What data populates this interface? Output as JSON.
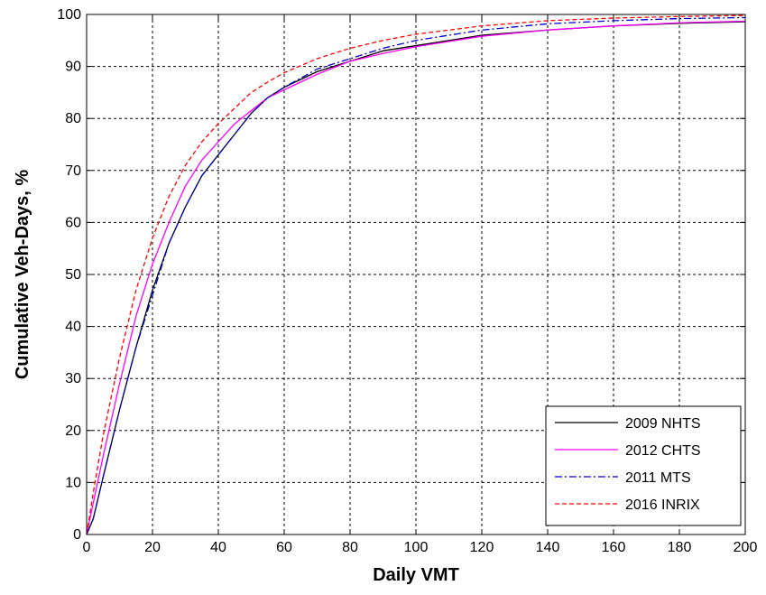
{
  "chart_data": {
    "type": "line",
    "title": "",
    "xlabel": "Daily VMT",
    "ylabel": "Cumulative Veh-Days, %",
    "xlim": [
      0,
      200
    ],
    "ylim": [
      0,
      100
    ],
    "x_ticks": [
      0,
      20,
      40,
      60,
      80,
      100,
      120,
      140,
      160,
      180,
      200
    ],
    "y_ticks": [
      0,
      10,
      20,
      30,
      40,
      50,
      60,
      70,
      80,
      90,
      100
    ],
    "grid": true,
    "legend_position": "bottom-right",
    "series": [
      {
        "name": "2009 NHTS",
        "color": "#000000",
        "dash": "solid",
        "x": [
          0,
          2,
          5,
          10,
          15,
          20,
          25,
          30,
          35,
          40,
          45,
          50,
          55,
          60,
          70,
          80,
          90,
          100,
          120,
          140,
          160,
          180,
          200
        ],
        "y": [
          0,
          3,
          11,
          24,
          36,
          47,
          56,
          63,
          69,
          73,
          77,
          81,
          84,
          86,
          89,
          91,
          93,
          94,
          96,
          97,
          97.8,
          98.3,
          98.6
        ]
      },
      {
        "name": "2012 CHTS",
        "color": "#ff00ff",
        "dash": "solid",
        "x": [
          0,
          2,
          5,
          10,
          15,
          20,
          25,
          30,
          35,
          40,
          45,
          50,
          55,
          60,
          70,
          80,
          90,
          100,
          120,
          140,
          160,
          180,
          200
        ],
        "y": [
          0,
          6,
          15,
          29,
          42,
          52,
          60,
          67,
          72,
          75.5,
          79,
          81.5,
          84,
          85.5,
          88.5,
          91,
          92.5,
          93.8,
          95.8,
          97,
          97.8,
          98.4,
          98.7
        ]
      },
      {
        "name": "2011 MTS",
        "color": "#0000cc",
        "dash": "dashdot",
        "x": [
          0,
          2,
          5,
          10,
          15,
          20,
          25,
          30,
          35,
          40,
          45,
          50,
          55,
          60,
          70,
          80,
          90,
          100,
          120,
          140,
          160,
          180,
          200
        ],
        "y": [
          0,
          3,
          11,
          24,
          36,
          46,
          56,
          63,
          69,
          73,
          77,
          81,
          84,
          86,
          89.5,
          91.5,
          93.5,
          95,
          97,
          98.2,
          98.8,
          99.2,
          99.4
        ]
      },
      {
        "name": "2016 INRIX",
        "color": "#ff0000",
        "dash": "dashed",
        "x": [
          0,
          2,
          5,
          10,
          15,
          20,
          25,
          30,
          35,
          40,
          45,
          50,
          55,
          60,
          70,
          80,
          90,
          100,
          120,
          140,
          160,
          180,
          200
        ],
        "y": [
          0,
          8,
          19,
          34,
          47,
          57,
          65,
          71,
          75.5,
          79,
          82,
          85,
          87,
          88.8,
          91.5,
          93.5,
          95,
          96.2,
          97.8,
          98.8,
          99.3,
          99.6,
          99.8
        ]
      }
    ]
  }
}
